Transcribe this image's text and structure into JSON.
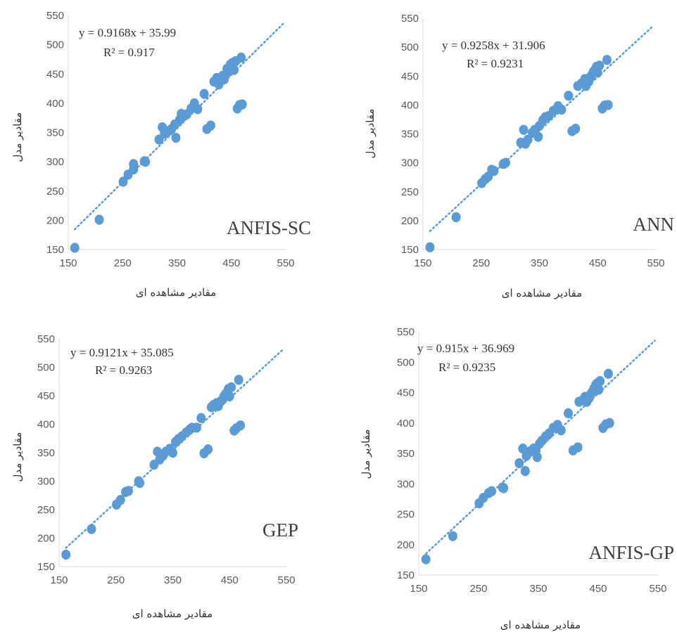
{
  "colors": {
    "points": "#5b9bd5",
    "trendline": "#5b9bd5",
    "axis": "#d9d9d9"
  },
  "chart_data": [
    {
      "type": "scatter",
      "model": "ANFIS-SC",
      "equation": "y = 0.9168x + 35.99",
      "r2_label": "R² = 0.917",
      "xlabel": "مقادیر مشاهده ای",
      "ylabel": "مقادیر مدل",
      "xlim": [
        150,
        550
      ],
      "ylim": [
        150,
        550
      ],
      "xticks": [
        "150",
        "250",
        "350",
        "450",
        "550"
      ],
      "yticks": [
        "150",
        "200",
        "250",
        "300",
        "350",
        "400",
        "450",
        "500",
        "550"
      ],
      "trendline": {
        "slope": 0.9168,
        "intercept": 35.99,
        "x_range": [
          162,
          468
        ]
      },
      "points": [
        [
          162,
          153
        ],
        [
          207,
          201
        ],
        [
          251,
          266
        ],
        [
          260,
          278
        ],
        [
          270,
          296
        ],
        [
          270,
          287
        ],
        [
          290,
          301
        ],
        [
          292,
          300
        ],
        [
          317,
          338
        ],
        [
          323,
          359
        ],
        [
          327,
          348
        ],
        [
          335,
          353
        ],
        [
          340,
          356
        ],
        [
          346,
          364
        ],
        [
          348,
          341
        ],
        [
          355,
          372
        ],
        [
          358,
          382
        ],
        [
          362,
          378
        ],
        [
          368,
          381
        ],
        [
          376,
          391
        ],
        [
          382,
          400
        ],
        [
          388,
          390
        ],
        [
          400,
          416
        ],
        [
          405,
          356
        ],
        [
          412,
          362
        ],
        [
          418,
          437
        ],
        [
          423,
          443
        ],
        [
          427,
          432
        ],
        [
          430,
          438
        ],
        [
          434,
          447
        ],
        [
          437,
          441
        ],
        [
          440,
          450
        ],
        [
          442,
          459
        ],
        [
          445,
          454
        ],
        [
          448,
          466
        ],
        [
          450,
          462
        ],
        [
          452,
          469
        ],
        [
          455,
          457
        ],
        [
          458,
          472
        ],
        [
          461,
          391
        ],
        [
          465,
          397
        ],
        [
          468,
          478
        ],
        [
          470,
          398
        ]
      ]
    },
    {
      "type": "scatter",
      "model": "ANN",
      "equation": "y = 0.9258x + 31.906",
      "r2_label": "R² = 0.9231",
      "xlabel": "مقادیر مشاهده ای",
      "ylabel": "مقادیر مدل",
      "xlim": [
        150,
        550
      ],
      "ylim": [
        150,
        550
      ],
      "xticks": [
        "150",
        "250",
        "350",
        "450",
        "550"
      ],
      "yticks": [
        "150",
        "200",
        "250",
        "300",
        "350",
        "400",
        "450",
        "500",
        "550"
      ],
      "trendline": {
        "slope": 0.9258,
        "intercept": 31.906,
        "x_range": [
          162,
          468
        ]
      },
      "points": [
        [
          162,
          154
        ],
        [
          207,
          206
        ],
        [
          251,
          265
        ],
        [
          257,
          272
        ],
        [
          262,
          276
        ],
        [
          268,
          288
        ],
        [
          272,
          286
        ],
        [
          288,
          298
        ],
        [
          292,
          300
        ],
        [
          318,
          335
        ],
        [
          323,
          357
        ],
        [
          326,
          333
        ],
        [
          330,
          340
        ],
        [
          338,
          352
        ],
        [
          342,
          357
        ],
        [
          348,
          345
        ],
        [
          350,
          364
        ],
        [
          356,
          374
        ],
        [
          360,
          379
        ],
        [
          366,
          381
        ],
        [
          374,
          390
        ],
        [
          382,
          398
        ],
        [
          388,
          392
        ],
        [
          400,
          416
        ],
        [
          406,
          355
        ],
        [
          412,
          359
        ],
        [
          416,
          433
        ],
        [
          422,
          437
        ],
        [
          428,
          445
        ],
        [
          430,
          433
        ],
        [
          435,
          441
        ],
        [
          438,
          449
        ],
        [
          440,
          452
        ],
        [
          443,
          458
        ],
        [
          446,
          462
        ],
        [
          448,
          466
        ],
        [
          450,
          456
        ],
        [
          453,
          468
        ],
        [
          458,
          394
        ],
        [
          462,
          399
        ],
        [
          466,
          478
        ],
        [
          468,
          400
        ]
      ]
    },
    {
      "type": "scatter",
      "model": "GEP",
      "equation": "y = 0.9121x + 35.085",
      "r2_label": "R² = 0.9263",
      "xlabel": "مقادیر مشاهده ای",
      "ylabel": "مقادیر مدل",
      "xlim": [
        150,
        550
      ],
      "ylim": [
        150,
        550
      ],
      "xticks": [
        "150",
        "250",
        "350",
        "450",
        "550"
      ],
      "yticks": [
        "150",
        "200",
        "250",
        "300",
        "350",
        "400",
        "450",
        "500",
        "550"
      ],
      "trendline": {
        "slope": 0.9121,
        "intercept": 35.085,
        "x_range": [
          162,
          468
        ]
      },
      "points": [
        [
          162,
          171
        ],
        [
          207,
          216
        ],
        [
          251,
          259
        ],
        [
          258,
          267
        ],
        [
          267,
          281
        ],
        [
          272,
          283
        ],
        [
          290,
          300
        ],
        [
          292,
          297
        ],
        [
          317,
          329
        ],
        [
          323,
          352
        ],
        [
          327,
          338
        ],
        [
          333,
          345
        ],
        [
          338,
          352
        ],
        [
          345,
          357
        ],
        [
          350,
          350
        ],
        [
          355,
          369
        ],
        [
          360,
          374
        ],
        [
          366,
          379
        ],
        [
          374,
          386
        ],
        [
          380,
          391
        ],
        [
          384,
          394
        ],
        [
          392,
          394
        ],
        [
          400,
          411
        ],
        [
          405,
          349
        ],
        [
          412,
          356
        ],
        [
          418,
          430
        ],
        [
          422,
          434
        ],
        [
          427,
          437
        ],
        [
          430,
          432
        ],
        [
          434,
          440
        ],
        [
          438,
          444
        ],
        [
          440,
          449
        ],
        [
          443,
          453
        ],
        [
          446,
          457
        ],
        [
          448,
          462
        ],
        [
          450,
          449
        ],
        [
          453,
          465
        ],
        [
          458,
          389
        ],
        [
          462,
          393
        ],
        [
          466,
          478
        ],
        [
          469,
          398
        ]
      ]
    },
    {
      "type": "scatter",
      "model": "ANFIS-GP",
      "equation": "y = 0.915x + 36.969",
      "r2_label": "R² = 0.9235",
      "xlabel": "مقادیر مشاهده ای",
      "ylabel": "مقادیر مدل",
      "xlim": [
        150,
        550
      ],
      "ylim": [
        150,
        550
      ],
      "xticks": [
        "150",
        "250",
        "350",
        "450",
        "550"
      ],
      "yticks": [
        "150",
        "200",
        "250",
        "300",
        "350",
        "400",
        "450",
        "500",
        "550"
      ],
      "trendline": {
        "slope": 0.915,
        "intercept": 36.969,
        "x_range": [
          162,
          468
        ]
      },
      "points": [
        [
          162,
          176
        ],
        [
          207,
          214
        ],
        [
          251,
          268
        ],
        [
          258,
          277
        ],
        [
          267,
          285
        ],
        [
          272,
          288
        ],
        [
          290,
          294
        ],
        [
          292,
          293
        ],
        [
          318,
          334
        ],
        [
          324,
          358
        ],
        [
          328,
          321
        ],
        [
          330,
          346
        ],
        [
          337,
          354
        ],
        [
          342,
          358
        ],
        [
          346,
          355
        ],
        [
          348,
          344
        ],
        [
          352,
          366
        ],
        [
          356,
          371
        ],
        [
          362,
          378
        ],
        [
          368,
          383
        ],
        [
          375,
          392
        ],
        [
          382,
          397
        ],
        [
          388,
          388
        ],
        [
          400,
          416
        ],
        [
          408,
          355
        ],
        [
          416,
          360
        ],
        [
          418,
          435
        ],
        [
          423,
          437
        ],
        [
          428,
          443
        ],
        [
          431,
          435
        ],
        [
          435,
          441
        ],
        [
          438,
          448
        ],
        [
          440,
          451
        ],
        [
          443,
          457
        ],
        [
          446,
          463
        ],
        [
          448,
          465
        ],
        [
          451,
          455
        ],
        [
          453,
          469
        ],
        [
          458,
          392
        ],
        [
          463,
          398
        ],
        [
          467,
          481
        ],
        [
          469,
          400
        ]
      ]
    }
  ]
}
